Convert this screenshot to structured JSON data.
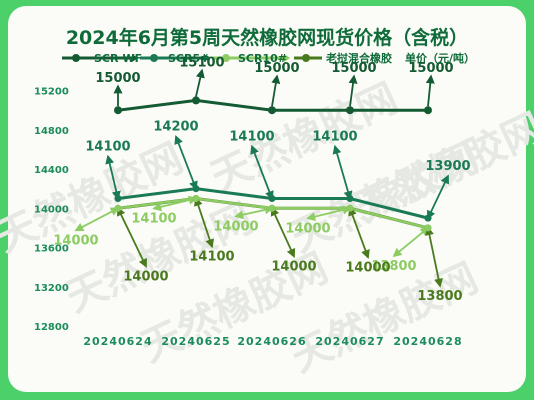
{
  "chart_data": {
    "type": "line",
    "title": "2024年6月第5周天然橡胶网现货价格（含税）",
    "unit_note": "单价（元/吨）",
    "categories": [
      "20240624",
      "20240625",
      "20240626",
      "20240627",
      "20240628"
    ],
    "yticks": [
      "15200",
      "14800",
      "14400",
      "14000",
      "13600",
      "13200",
      "12800"
    ],
    "ylim": [
      12800,
      15400
    ],
    "series": [
      {
        "name": "SCR-WF",
        "values": [
          15000,
          15100,
          15000,
          15000,
          15000
        ],
        "color": "#145a32"
      },
      {
        "name": "SCR5#",
        "values": [
          14100,
          14200,
          14100,
          14100,
          13900
        ],
        "color": "#1a7a55"
      },
      {
        "name": "SCR10#",
        "values": [
          14000,
          14100,
          14000,
          14000,
          13800
        ],
        "color": "#8ccc63"
      },
      {
        "name": "老挝混合橡胶",
        "values": [
          14000,
          14100,
          14000,
          14000,
          13800
        ],
        "color": "#4a7a1e"
      }
    ],
    "labels": {
      "SCR-WF": [
        "15000",
        "15100",
        "15000",
        "15000",
        "15000"
      ],
      "SCR5#": [
        "14100",
        "14200",
        "14100",
        "14100",
        "13900"
      ],
      "SCR10#": [
        "14000",
        "14100",
        "14000",
        "14000",
        "13800"
      ],
      "老挝混合橡胶": [
        "14000",
        "14100",
        "14000",
        "14000",
        "13800"
      ]
    },
    "grid": false,
    "legend_position": "top"
  },
  "watermark": "天然橡胶网"
}
